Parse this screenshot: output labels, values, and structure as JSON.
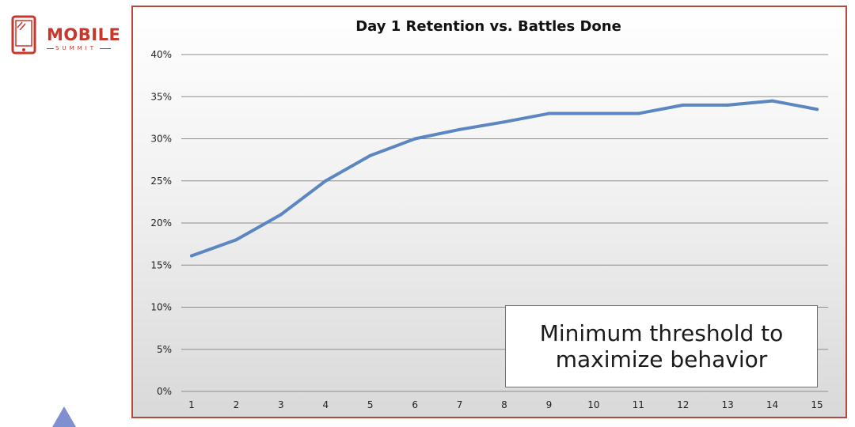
{
  "logo": {
    "name": "MOBILE",
    "sub": "SUMMIT",
    "color": "#c8372d"
  },
  "chart_data": {
    "type": "line",
    "title": "Day 1 Retention vs. Battles Done",
    "xlabel": "",
    "ylabel": "",
    "x": [
      1,
      2,
      3,
      4,
      5,
      6,
      7,
      8,
      9,
      10,
      11,
      12,
      13,
      14,
      15
    ],
    "series": [
      {
        "values": [
          16.1,
          18.0,
          21.0,
          25.0,
          28.0,
          30.0,
          31.1,
          32.0,
          33.0,
          33.0,
          33.0,
          34.0,
          34.0,
          34.5,
          33.5
        ],
        "color": "#5b86c1"
      }
    ],
    "ylim": [
      0,
      40
    ],
    "yticks": [
      0,
      5,
      10,
      15,
      20,
      25,
      30,
      35,
      40
    ],
    "ytick_labels": [
      "0%",
      "5%",
      "10%",
      "15%",
      "20%",
      "25%",
      "30%",
      "35%",
      "40%"
    ],
    "grid": true,
    "legend": "none"
  },
  "callout": {
    "line1": "Minimum threshold to",
    "line2": "maximize behavior"
  },
  "colors": {
    "frame_border": "#b5493f",
    "gridline": "#8c8c8c",
    "accent_triangle": "#7f8fd0"
  }
}
